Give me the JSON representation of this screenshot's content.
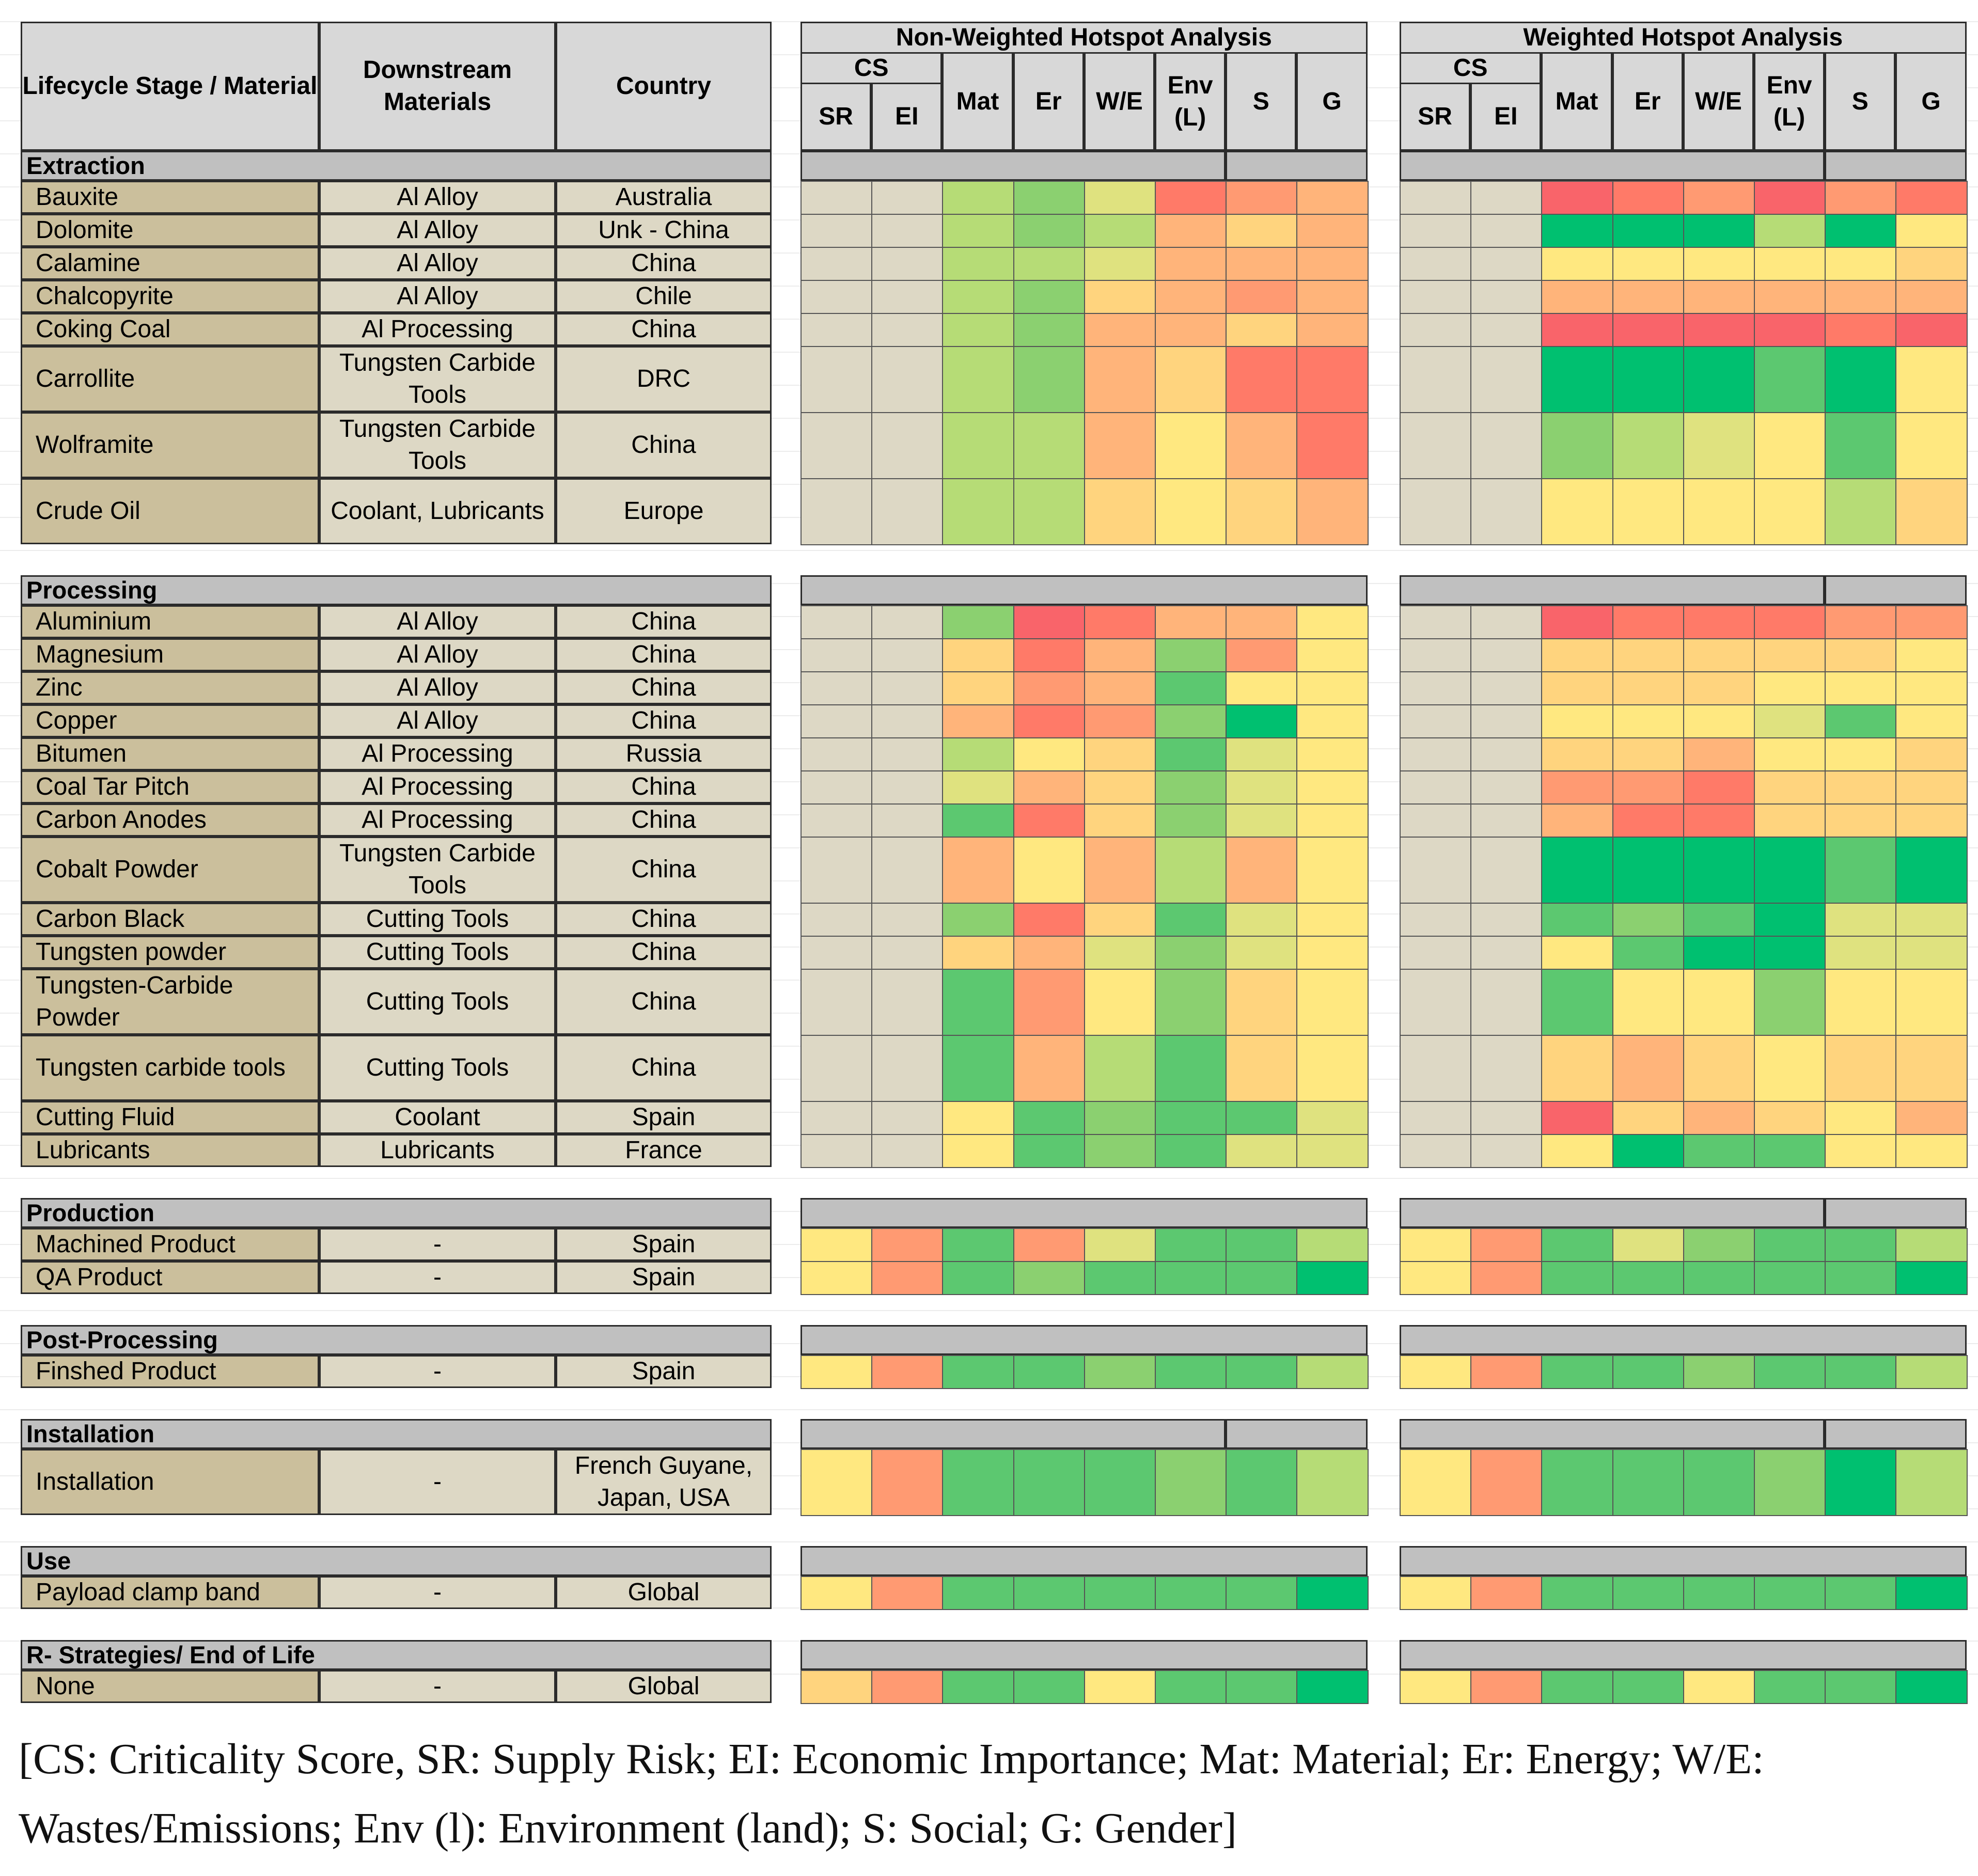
{
  "header": {
    "col_stage": "Lifecycle Stage / Material",
    "col_downstream": "Downstream Materials",
    "col_country": "Country",
    "non_weighted_title": "Non-Weighted Hotspot Analysis",
    "weighted_title": "Weighted Hotspot Analysis",
    "cs_label": "CS",
    "sub_columns": [
      "SR",
      "EI",
      "Mat",
      "Er",
      "W/E",
      "Env (L)",
      "S",
      "G"
    ]
  },
  "score_colors": {
    "0": "#ddd8c5",
    "1": "#00c070",
    "2": "#5cc870",
    "3": "#8bd070",
    "4": "#b6dc76",
    "5": "#dfe27f",
    "6": "#ffe880",
    "7": "#ffd47e",
    "8": "#ffb47a",
    "9": "#ff9a72",
    "10": "#ff7a68",
    "11": "#f9646a"
  },
  "sections": [
    {
      "title": "Extraction",
      "nw_split": true,
      "w_split": true,
      "rows": [
        {
          "material": "Bauxite",
          "downstream": "Al Alloy",
          "country": "Australia",
          "h": 1,
          "nw": [
            0,
            0,
            4,
            3,
            5,
            10,
            9,
            8
          ],
          "w": [
            0,
            0,
            11,
            10,
            9,
            11,
            9,
            10
          ]
        },
        {
          "material": "Dolomite",
          "downstream": "Al Alloy",
          "country": "Unk - China",
          "h": 1,
          "nw": [
            0,
            0,
            4,
            3,
            4,
            8,
            7,
            8
          ],
          "w": [
            0,
            0,
            1,
            1,
            1,
            4,
            1,
            6
          ]
        },
        {
          "material": "Calamine",
          "downstream": "Al Alloy",
          "country": "China",
          "h": 1,
          "nw": [
            0,
            0,
            4,
            4,
            5,
            8,
            8,
            8
          ],
          "w": [
            0,
            0,
            6,
            6,
            6,
            6,
            6,
            7
          ]
        },
        {
          "material": " Chalcopyrite",
          "downstream": "Al Alloy",
          "country": "Chile",
          "h": 1,
          "nw": [
            0,
            0,
            4,
            3,
            7,
            8,
            9,
            8
          ],
          "w": [
            0,
            0,
            8,
            8,
            8,
            8,
            8,
            8
          ]
        },
        {
          "material": "Coking Coal",
          "downstream": "Al Processing",
          "country": "China",
          "h": 1,
          "nw": [
            0,
            0,
            4,
            3,
            8,
            8,
            7,
            8
          ],
          "w": [
            0,
            0,
            11,
            11,
            11,
            11,
            10,
            11
          ]
        },
        {
          "material": "Carrollite",
          "downstream": "Tungsten Carbide Tools",
          "country": "DRC",
          "h": 2,
          "nw": [
            0,
            0,
            4,
            3,
            8,
            7,
            10,
            10
          ],
          "w": [
            0,
            0,
            1,
            1,
            1,
            2,
            1,
            6
          ]
        },
        {
          "material": "Wolframite",
          "downstream": "Tungsten Carbide Tools",
          "country": "China",
          "h": 2,
          "nw": [
            0,
            0,
            4,
            4,
            8,
            6,
            8,
            10
          ],
          "w": [
            0,
            0,
            3,
            4,
            5,
            6,
            2,
            6
          ]
        },
        {
          "material": "Crude Oil",
          "downstream": "Coolant, Lubricants",
          "country": "Europe",
          "h": 2,
          "nw": [
            0,
            0,
            4,
            4,
            7,
            6,
            7,
            8
          ],
          "w": [
            0,
            0,
            6,
            6,
            6,
            6,
            4,
            7
          ]
        }
      ]
    },
    {
      "title": "Processing",
      "nw_split": false,
      "w_split": true,
      "rows": [
        {
          "material": "Aluminium",
          "downstream": "Al Alloy",
          "country": "China",
          "h": 1,
          "nw": [
            0,
            0,
            3,
            11,
            10,
            8,
            8,
            6
          ],
          "w": [
            0,
            0,
            11,
            10,
            10,
            10,
            9,
            9
          ]
        },
        {
          "material": "Magnesium",
          "downstream": "Al Alloy",
          "country": "China",
          "h": 1,
          "nw": [
            0,
            0,
            7,
            10,
            8,
            3,
            9,
            6
          ],
          "w": [
            0,
            0,
            7,
            7,
            7,
            7,
            7,
            6
          ]
        },
        {
          "material": "Zinc",
          "downstream": "Al Alloy",
          "country": "China",
          "h": 1,
          "nw": [
            0,
            0,
            7,
            9,
            8,
            2,
            6,
            6
          ],
          "w": [
            0,
            0,
            7,
            7,
            7,
            6,
            6,
            6
          ]
        },
        {
          "material": "Copper",
          "downstream": "Al Alloy",
          "country": "China",
          "h": 1,
          "nw": [
            0,
            0,
            8,
            10,
            9,
            3,
            1,
            6
          ],
          "w": [
            0,
            0,
            6,
            6,
            6,
            5,
            2,
            6
          ]
        },
        {
          "material": "Bitumen",
          "downstream": "Al Processing",
          "country": "Russia",
          "h": 1,
          "nw": [
            0,
            0,
            4,
            6,
            7,
            2,
            5,
            6
          ],
          "w": [
            0,
            0,
            7,
            7,
            8,
            6,
            6,
            7
          ]
        },
        {
          "material": "Coal Tar Pitch",
          "downstream": "Al Processing",
          "country": "China",
          "h": 1,
          "nw": [
            0,
            0,
            5,
            8,
            7,
            3,
            5,
            6
          ],
          "w": [
            0,
            0,
            9,
            9,
            10,
            7,
            7,
            7
          ]
        },
        {
          "material": "Carbon Anodes",
          "downstream": "Al Processing",
          "country": "China",
          "h": 1,
          "nw": [
            0,
            0,
            2,
            10,
            7,
            3,
            5,
            6
          ],
          "w": [
            0,
            0,
            8,
            10,
            10,
            7,
            7,
            7
          ]
        },
        {
          "material": "Cobalt Powder",
          "downstream": "Tungsten Carbide Tools",
          "country": "China",
          "h": 2,
          "nw": [
            0,
            0,
            8,
            6,
            8,
            4,
            8,
            6
          ],
          "w": [
            0,
            0,
            1,
            1,
            1,
            1,
            2,
            1
          ]
        },
        {
          "material": "Carbon Black",
          "downstream": "Cutting Tools",
          "country": "China",
          "h": 1,
          "nw": [
            0,
            0,
            3,
            10,
            7,
            2,
            5,
            6
          ],
          "w": [
            0,
            0,
            2,
            3,
            2,
            1,
            5,
            5
          ]
        },
        {
          "material": "Tungsten powder",
          "downstream": "Cutting Tools",
          "country": "China",
          "h": 1,
          "nw": [
            0,
            0,
            7,
            8,
            5,
            3,
            5,
            6
          ],
          "w": [
            0,
            0,
            6,
            2,
            1,
            1,
            5,
            5
          ]
        },
        {
          "material": "Tungsten-Carbide Powder",
          "downstream": "Cutting Tools",
          "country": "China",
          "h": 2,
          "nw": [
            0,
            0,
            2,
            9,
            6,
            3,
            7,
            6
          ],
          "w": [
            0,
            0,
            2,
            6,
            6,
            3,
            6,
            6
          ]
        },
        {
          "material": "Tungsten carbide tools",
          "downstream": "Cutting Tools",
          "country": "China",
          "h": 2,
          "nw": [
            0,
            0,
            2,
            8,
            4,
            2,
            7,
            6
          ],
          "w": [
            0,
            0,
            7,
            8,
            7,
            6,
            7,
            7
          ]
        },
        {
          "material": "Cutting Fluid",
          "downstream": "Coolant",
          "country": "Spain",
          "h": 1,
          "nw": [
            0,
            0,
            6,
            2,
            3,
            2,
            2,
            5
          ],
          "w": [
            0,
            0,
            11,
            7,
            8,
            7,
            6,
            8
          ]
        },
        {
          "material": "Lubricants",
          "downstream": "Lubricants",
          "country": "France",
          "h": 1,
          "nw": [
            0,
            0,
            6,
            2,
            3,
            2,
            5,
            5
          ],
          "w": [
            0,
            0,
            6,
            1,
            2,
            2,
            6,
            6
          ]
        }
      ]
    },
    {
      "title": "Production",
      "nw_split": false,
      "w_split": true,
      "rows": [
        {
          "material": "Machined Product",
          "downstream": "-",
          "country": "Spain",
          "h": 1,
          "nw": [
            6,
            9,
            2,
            9,
            5,
            2,
            2,
            4
          ],
          "w": [
            6,
            9,
            2,
            5,
            3,
            2,
            2,
            4
          ]
        },
        {
          "material": "QA Product",
          "downstream": "-",
          "country": "Spain",
          "h": 1,
          "nw": [
            6,
            9,
            2,
            3,
            2,
            2,
            2,
            1
          ],
          "w": [
            6,
            9,
            2,
            2,
            2,
            2,
            2,
            1
          ]
        }
      ]
    },
    {
      "title": "Post-Processing",
      "nw_split": false,
      "w_split": false,
      "rows": [
        {
          "material": "Finshed Product",
          "downstream": "-",
          "country": "Spain",
          "h": 1,
          "nw": [
            6,
            9,
            2,
            2,
            3,
            2,
            2,
            4
          ],
          "w": [
            6,
            9,
            2,
            2,
            3,
            2,
            2,
            4
          ]
        }
      ]
    },
    {
      "title": "Installation",
      "nw_split": true,
      "w_split": true,
      "rows": [
        {
          "material": "Installation",
          "downstream": "-",
          "country": "French Guyane, Japan, USA",
          "h": 2,
          "nw": [
            6,
            9,
            2,
            2,
            2,
            3,
            2,
            4
          ],
          "w": [
            6,
            9,
            2,
            2,
            2,
            3,
            1,
            4
          ]
        }
      ]
    },
    {
      "title": "Use",
      "nw_split": false,
      "w_split": false,
      "rows": [
        {
          "material": "Payload clamp band",
          "downstream": "-",
          "country": "Global",
          "h": 1,
          "nw": [
            6,
            9,
            2,
            2,
            2,
            2,
            2,
            1
          ],
          "w": [
            6,
            9,
            2,
            2,
            2,
            2,
            2,
            1
          ]
        }
      ]
    },
    {
      "title": "R- Strategies/ End of Life",
      "nw_split": false,
      "w_split": false,
      "rows": [
        {
          "material": "None",
          "downstream": "-",
          "country": "Global",
          "h": 1,
          "nw": [
            7,
            9,
            2,
            2,
            6,
            2,
            2,
            1
          ],
          "w": [
            6,
            9,
            2,
            2,
            6,
            2,
            2,
            1
          ]
        }
      ]
    }
  ],
  "legend_text": "[CS: Criticality Score, SR: Supply Risk; EI: Economic Importance; Mat: Material; Er: Energy; W/E: Wastes/Emissions; Env (l): Environment (land); S: Social; G: Gender]"
}
